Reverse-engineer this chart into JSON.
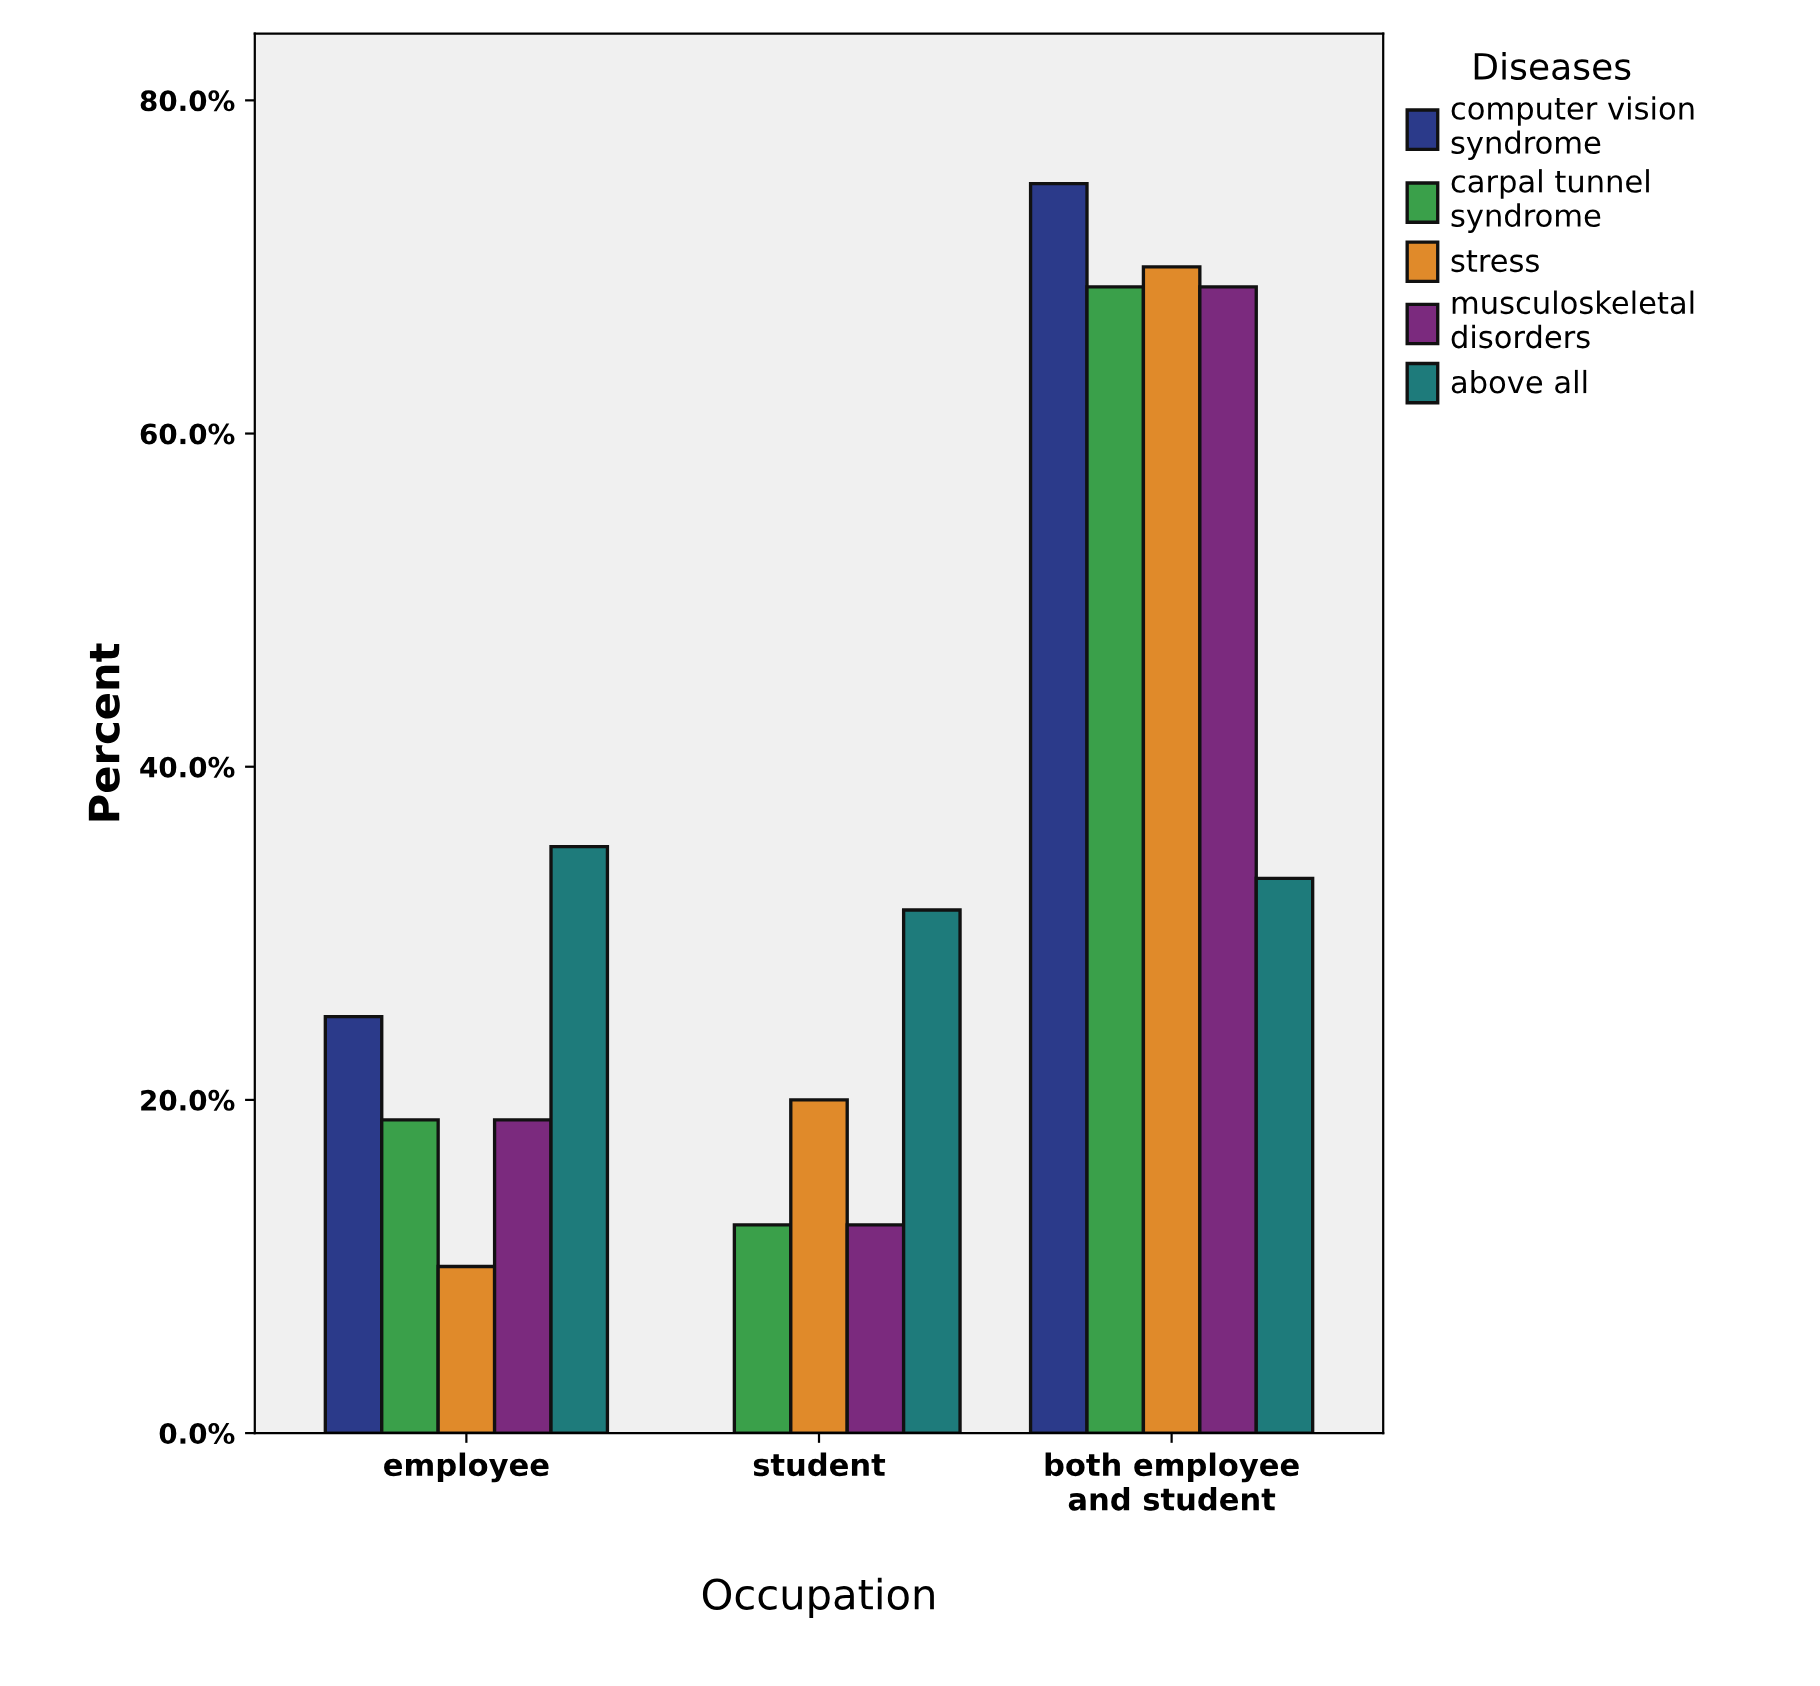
{
  "chart_data": {
    "type": "bar",
    "xlabel": "Occupation",
    "ylabel": "Percent",
    "legend_title": "Diseases",
    "categories": [
      "employee",
      "student",
      "both employee\nand student"
    ],
    "series": [
      {
        "name": "computer vision\nsyndrome",
        "color": "#2b3a8a",
        "values": [
          25.0,
          null,
          75.0
        ]
      },
      {
        "name": "carpal tunnel\nsyndrome",
        "color": "#3aa04a",
        "values": [
          18.8,
          12.5,
          68.8
        ]
      },
      {
        "name": "stress",
        "color": "#e08a2a",
        "values": [
          10.0,
          20.0,
          70.0
        ]
      },
      {
        "name": "musculoskeletal\ndisorders",
        "color": "#7b2a7e",
        "values": [
          18.8,
          12.5,
          68.8
        ]
      },
      {
        "name": "above all",
        "color": "#1e7b7b",
        "values": [
          35.2,
          31.4,
          33.3
        ]
      }
    ],
    "ylim": [
      0,
      84
    ],
    "yticks": [
      {
        "value": 0,
        "label": "0.0%"
      },
      {
        "value": 20,
        "label": "20.0%"
      },
      {
        "value": 40,
        "label": "40.0%"
      },
      {
        "value": 60,
        "label": "60.0%"
      },
      {
        "value": 80,
        "label": "80.0%"
      }
    ],
    "grid": false,
    "legend": "top right"
  }
}
